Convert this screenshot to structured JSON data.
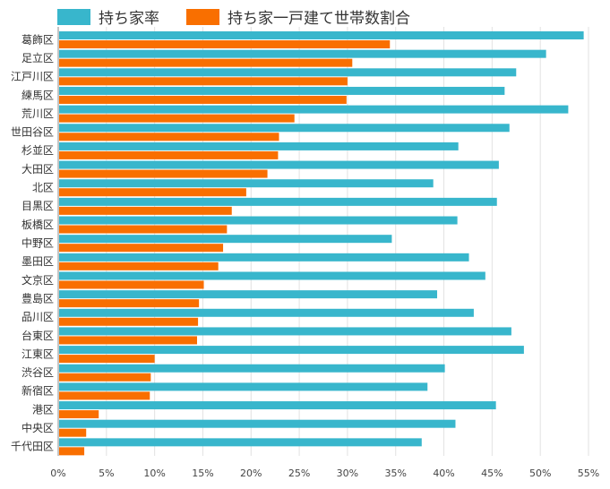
{
  "chart_data": {
    "type": "bar",
    "orientation": "horizontal",
    "title": "",
    "xlabel": "",
    "ylabel": "",
    "xlim": [
      0,
      55
    ],
    "x_ticks": [
      "0%",
      "5%",
      "10%",
      "15%",
      "20%",
      "25%",
      "30%",
      "35%",
      "40%",
      "45%",
      "50%",
      "55%"
    ],
    "grid": true,
    "legend_placement": "top-left",
    "categories": [
      "葛飾区",
      "足立区",
      "江戸川区",
      "練馬区",
      "荒川区",
      "世田谷区",
      "杉並区",
      "大田区",
      "北区",
      "目黒区",
      "板橋区",
      "中野区",
      "墨田区",
      "文京区",
      "豊島区",
      "品川区",
      "台東区",
      "江東区",
      "渋谷区",
      "新宿区",
      "港区",
      "中央区",
      "千代田区"
    ],
    "series": [
      {
        "name": "持ち家率",
        "color": "#38b6cc",
        "values": [
          54.5,
          50.6,
          47.5,
          46.3,
          52.9,
          46.8,
          41.5,
          45.7,
          38.9,
          45.5,
          41.4,
          34.6,
          42.6,
          44.3,
          39.3,
          43.1,
          47.0,
          48.3,
          40.1,
          38.3,
          45.4,
          41.2,
          37.7
        ]
      },
      {
        "name": "持ち家一戸建て世帯数割合",
        "color": "#f96f00",
        "values": [
          34.4,
          30.5,
          30.0,
          29.9,
          24.5,
          22.9,
          22.8,
          21.7,
          19.5,
          18.0,
          17.5,
          17.1,
          16.6,
          15.1,
          14.6,
          14.5,
          14.4,
          10.0,
          9.6,
          9.5,
          4.2,
          2.9,
          2.7
        ]
      }
    ]
  }
}
